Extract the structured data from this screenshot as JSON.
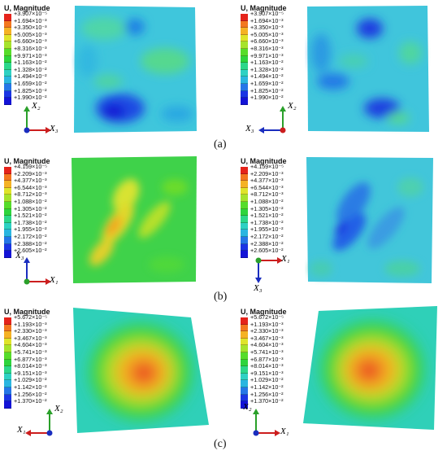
{
  "legend_colors": [
    "#e5231b",
    "#f3771f",
    "#f5b224",
    "#dfe42a",
    "#a6e32c",
    "#56dc2a",
    "#2dd43d",
    "#2cd78a",
    "#2ed1c3",
    "#2ab6e0",
    "#2576e7",
    "#1a35e4",
    "#1313d6"
  ],
  "panel_a": {
    "caption": "(a)",
    "legend_title": "U, Magnitude",
    "legend_values": [
      "+3.907×10⁻⁵",
      "+1.694×10⁻³",
      "+3.350×10⁻³",
      "+5.005×10⁻³",
      "+6.660×10⁻³",
      "+8.316×10⁻³",
      "+9.971×10⁻³",
      "+1.163×10⁻²",
      "+1.328×10⁻²",
      "+1.494×10⁻²",
      "+1.659×10⁻²",
      "+1.825×10⁻²",
      "+1.990×10⁻²"
    ],
    "left_axes": {
      "up": "X₂",
      "right": "X₃"
    },
    "right_axes": {
      "up": "X₂",
      "left": "X₃"
    }
  },
  "panel_b": {
    "caption": "(b)",
    "legend_title": "U, Magnitude",
    "legend_values": [
      "+4.159×10⁻⁵",
      "+2.209×10⁻³",
      "+4.377×10⁻³",
      "+6.544×10⁻³",
      "+8.712×10⁻³",
      "+1.088×10⁻²",
      "+1.305×10⁻²",
      "+1.521×10⁻²",
      "+1.738×10⁻²",
      "+1.955×10⁻²",
      "+2.172×10⁻²",
      "+2.388×10⁻²",
      "+2.605×10⁻²"
    ],
    "left_axes": {
      "up": "X₃",
      "right": "X₁"
    },
    "right_axes": {
      "down": "X₃",
      "right": "X₁"
    }
  },
  "panel_c": {
    "caption": "(c)",
    "legend_title": "U, Magnitude",
    "legend_values": [
      "+5.672×10⁻⁵",
      "+1.193×10⁻³",
      "+2.330×10⁻³",
      "+3.467×10⁻³",
      "+4.604×10⁻³",
      "+5.741×10⁻³",
      "+6.877×10⁻³",
      "+8.014×10⁻³",
      "+9.151×10⁻³",
      "+1.029×10⁻²",
      "+1.142×10⁻²",
      "+1.256×10⁻²",
      "+1.370×10⁻²"
    ],
    "left_axes": {
      "up": "X₂",
      "left": "X₁"
    },
    "right_axes": {
      "up": "X₂",
      "right": "X₁"
    }
  }
}
